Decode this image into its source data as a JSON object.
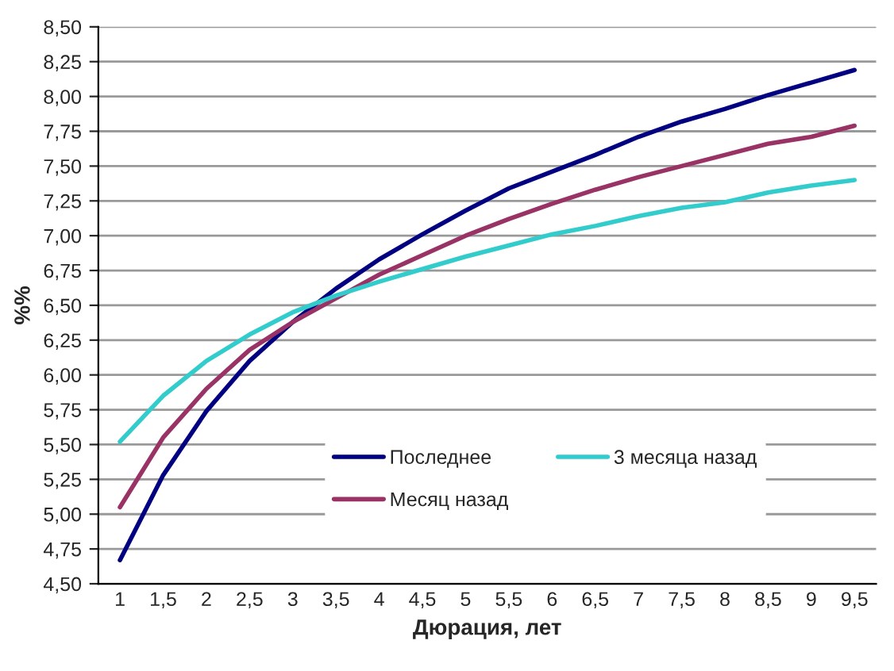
{
  "chart_data": {
    "type": "line",
    "xlabel": "Дюрация, лет",
    "ylabel": "%%",
    "categories": [
      "1",
      "1,5",
      "2",
      "2,5",
      "3",
      "3,5",
      "4",
      "4,5",
      "5",
      "5,5",
      "6",
      "6,5",
      "7",
      "7,5",
      "8",
      "8,5",
      "9",
      "9,5"
    ],
    "series": [
      {
        "name": "Последнее",
        "color": "#000080",
        "values": [
          4.67,
          5.28,
          5.74,
          6.1,
          6.38,
          6.62,
          6.83,
          7.01,
          7.18,
          7.34,
          7.46,
          7.58,
          7.71,
          7.82,
          7.91,
          8.01,
          8.1,
          8.19
        ]
      },
      {
        "name": "Месяц назад",
        "color": "#993366",
        "values": [
          5.05,
          5.55,
          5.9,
          6.18,
          6.38,
          6.55,
          6.72,
          6.86,
          7.0,
          7.12,
          7.23,
          7.33,
          7.42,
          7.5,
          7.58,
          7.66,
          7.71,
          7.79
        ]
      },
      {
        "name": "3 месяца назад",
        "color": "#33cccc",
        "values": [
          5.52,
          5.85,
          6.1,
          6.29,
          6.45,
          6.57,
          6.67,
          6.76,
          6.85,
          6.93,
          7.01,
          7.07,
          7.14,
          7.2,
          7.24,
          7.31,
          7.36,
          7.4
        ]
      }
    ],
    "ylim": [
      4.5,
      8.5
    ],
    "yticks": [
      {
        "value": 4.5,
        "label": "4,50"
      },
      {
        "value": 4.75,
        "label": "4,75"
      },
      {
        "value": 5.0,
        "label": "5,00"
      },
      {
        "value": 5.25,
        "label": "5,25"
      },
      {
        "value": 5.5,
        "label": "5,50"
      },
      {
        "value": 5.75,
        "label": "5,75"
      },
      {
        "value": 6.0,
        "label": "6,00"
      },
      {
        "value": 6.25,
        "label": "6,25"
      },
      {
        "value": 6.5,
        "label": "6,50"
      },
      {
        "value": 6.75,
        "label": "6,75"
      },
      {
        "value": 7.0,
        "label": "7,00"
      },
      {
        "value": 7.25,
        "label": "7,25"
      },
      {
        "value": 7.5,
        "label": "7,50"
      },
      {
        "value": 7.75,
        "label": "7,75"
      },
      {
        "value": 8.0,
        "label": "8,00"
      },
      {
        "value": 8.25,
        "label": "8,25"
      },
      {
        "value": 8.5,
        "label": "8,50"
      }
    ],
    "grid": "y",
    "legend": "bottom right",
    "marker": "none",
    "line_style": "solid"
  }
}
